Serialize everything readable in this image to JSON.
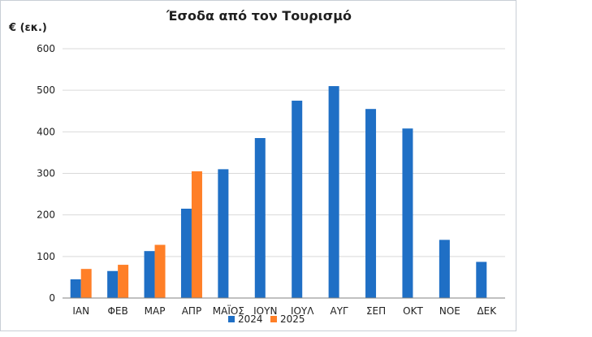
{
  "chart_data": {
    "type": "bar",
    "title": "Έσοδα από τον Τουρισμό",
    "unit_label": "€ (εκ.)",
    "categories": [
      "ΙΑΝ",
      "ΦΕΒ",
      "ΜΑΡ",
      "ΑΠΡ",
      "ΜΑΪΟΣ",
      "ΙΟΥΝ",
      "ΙΟΥΛ",
      "ΑΥΓ",
      "ΣΕΠ",
      "ΟΚΤ",
      "ΝΟΕ",
      "ΔΕΚ"
    ],
    "series": [
      {
        "name": "2024",
        "color": "#1f6fc5",
        "values": [
          45,
          65,
          113,
          215,
          310,
          385,
          475,
          510,
          455,
          408,
          140,
          87
        ]
      },
      {
        "name": "2025",
        "color": "#ff7f27",
        "values": [
          70,
          80,
          128,
          305,
          null,
          null,
          null,
          null,
          null,
          null,
          null,
          null
        ]
      }
    ],
    "ylim": [
      0,
      600
    ],
    "yticks": [
      0,
      100,
      200,
      300,
      400,
      500,
      600
    ],
    "grid": true,
    "legend_position": "bottom"
  }
}
